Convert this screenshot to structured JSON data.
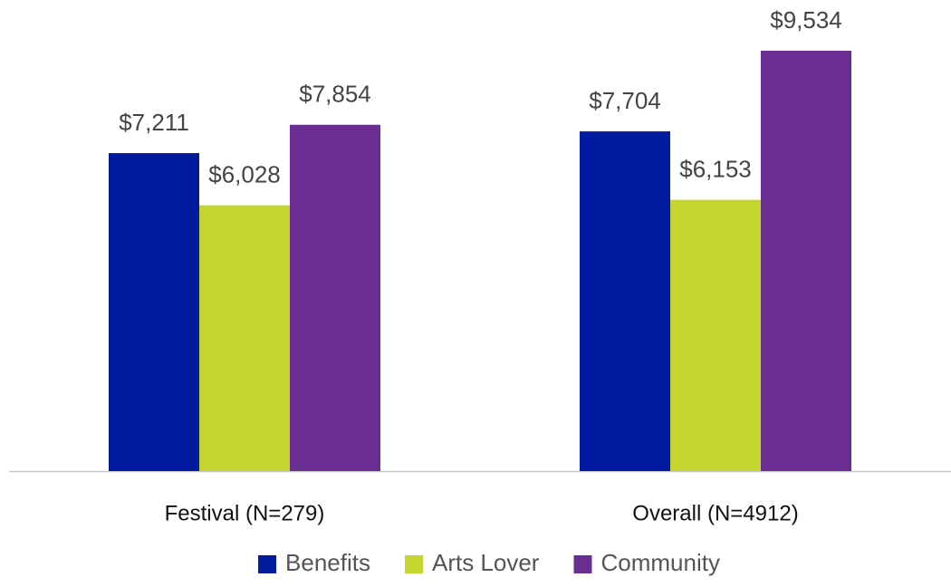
{
  "chart_data": {
    "type": "bar",
    "categories": [
      "Festival (N=279)",
      "Overall (N=4912)"
    ],
    "series": [
      {
        "name": "Benefits",
        "color": "#001ba0",
        "values": [
          7211,
          7704
        ],
        "value_labels": [
          "$7,211",
          "$7,704"
        ]
      },
      {
        "name": "Arts Lover",
        "color": "#c5d52e",
        "values": [
          6028,
          6153
        ],
        "value_labels": [
          "$6,028",
          "$6,153"
        ]
      },
      {
        "name": "Community",
        "color": "#6a2d91",
        "values": [
          7854,
          9534
        ],
        "value_labels": [
          "$7,854",
          "$9,534"
        ]
      }
    ],
    "ylim": [
      0,
      10000
    ],
    "legend": "bottom"
  }
}
